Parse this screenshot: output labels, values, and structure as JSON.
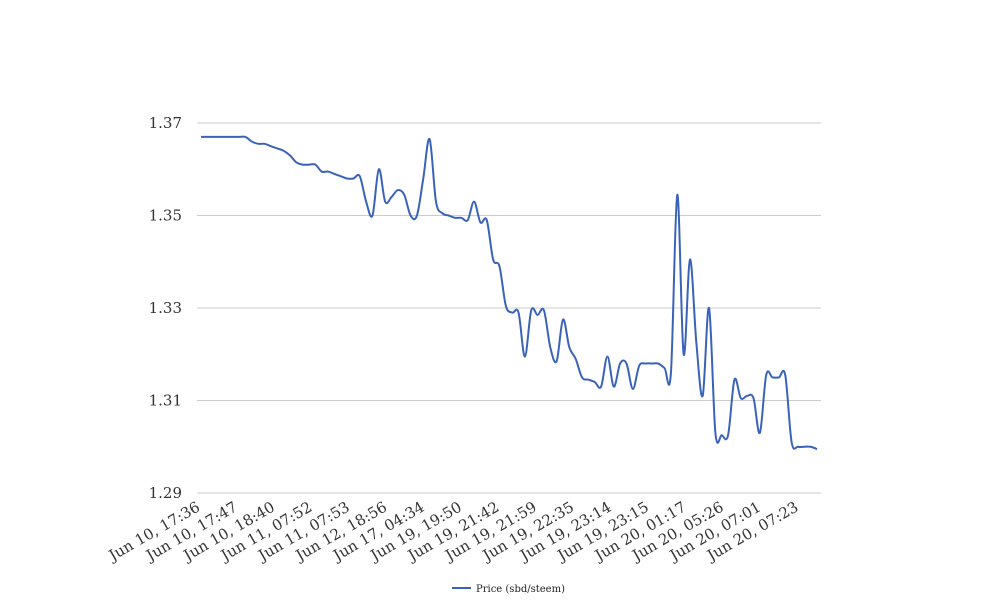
{
  "chart_data": {
    "type": "line",
    "title": "",
    "xlabel": "",
    "ylabel": "",
    "ylim": [
      1.29,
      1.37
    ],
    "yticks": [
      "1.37",
      "1.35",
      "1.33",
      "1.31",
      "1.29"
    ],
    "grid": "horizontal",
    "legend_position": "bottom",
    "x_tick_labels": [
      "Jun 10, 17:36",
      "Jun 10, 17:47",
      "Jun 10, 18:40",
      "Jun 11, 07:52",
      "Jun 11, 07:53",
      "Jun 12, 18:56",
      "Jun 17, 04:34",
      "Jun 19, 19:50",
      "Jun 19, 21:42",
      "Jun 19, 21:59",
      "Jun 19, 22:35",
      "Jun 19, 23:14",
      "Jun 19, 23:15",
      "Jun 20, 01:17",
      "Jun 20, 05:26",
      "Jun 20, 07:01",
      "Jun 20, 07:23"
    ],
    "series": [
      {
        "name": "Price (sbd/steem)",
        "color": "#3a63b8",
        "values": [
          1.367,
          1.367,
          1.367,
          1.367,
          1.367,
          1.367,
          1.367,
          1.367,
          1.366,
          1.3655,
          1.3655,
          1.365,
          1.3645,
          1.364,
          1.363,
          1.3615,
          1.361,
          1.361,
          1.361,
          1.3595,
          1.3595,
          1.359,
          1.3585,
          1.358,
          1.358,
          1.3585,
          1.353,
          1.35,
          1.36,
          1.353,
          1.354,
          1.3555,
          1.3545,
          1.35,
          1.35,
          1.358,
          1.3665,
          1.353,
          1.3505,
          1.35,
          1.3495,
          1.3495,
          1.349,
          1.353,
          1.3485,
          1.349,
          1.3405,
          1.339,
          1.3305,
          1.329,
          1.329,
          1.3195,
          1.3295,
          1.3285,
          1.3295,
          1.3215,
          1.3185,
          1.3275,
          1.3215,
          1.319,
          1.315,
          1.3145,
          1.314,
          1.313,
          1.3195,
          1.313,
          1.318,
          1.318,
          1.3125,
          1.3175,
          1.318,
          1.318,
          1.318,
          1.317,
          1.316,
          1.3545,
          1.32,
          1.3405,
          1.3225,
          1.311,
          1.33,
          1.303,
          1.3025,
          1.3025,
          1.3145,
          1.3105,
          1.311,
          1.3105,
          1.303,
          1.3155,
          1.315,
          1.315,
          1.3155,
          1.301,
          1.3,
          1.3,
          1.3,
          1.2995
        ]
      }
    ]
  }
}
